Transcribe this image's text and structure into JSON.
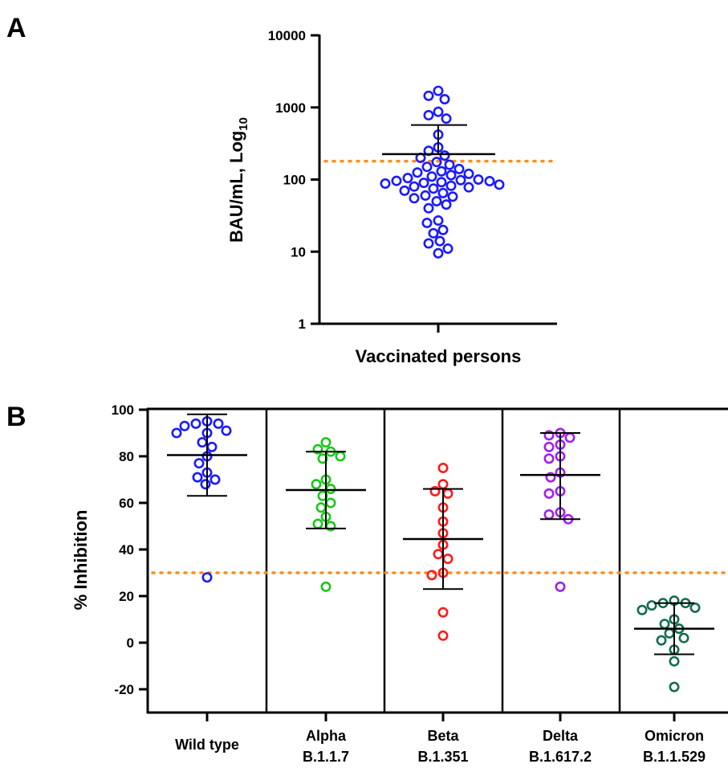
{
  "panels": {
    "a": {
      "letter": "A"
    },
    "b": {
      "letter": "B"
    }
  },
  "colors": {
    "threshold": "#ff8c1a",
    "wild_type": "#1a1aff",
    "alpha": "#19c819",
    "beta": "#ff1a1a",
    "delta": "#a020f0",
    "omicron": "#126e4e",
    "axis": "#000000"
  },
  "chart_data": [
    {
      "panel": "A",
      "type": "scatter",
      "scale": "log10",
      "ylabel_main": "BAU/mL, Log",
      "ylabel_sub": "10",
      "xlabel": "Vaccinated persons",
      "ylim": [
        1,
        10000
      ],
      "yticks": [
        "1",
        "10",
        "100",
        "1000",
        "10000"
      ],
      "threshold": 180,
      "mean": 225,
      "sd_upper": 570,
      "values": [
        1700,
        1450,
        1300,
        870,
        780,
        700,
        420,
        280,
        250,
        215,
        200,
        175,
        160,
        150,
        140,
        130,
        125,
        120,
        115,
        110,
        105,
        100,
        98,
        96,
        95,
        92,
        90,
        88,
        85,
        82,
        80,
        78,
        75,
        70,
        65,
        60,
        58,
        55,
        50,
        45,
        40,
        27,
        25,
        20,
        18,
        14,
        13,
        11,
        9.5
      ]
    },
    {
      "panel": "B",
      "type": "scatter",
      "ylabel": "% Inhibition",
      "ylim": [
        -30,
        100
      ],
      "yticks": [
        "-20",
        "0",
        "20",
        "40",
        "60",
        "80",
        "100"
      ],
      "threshold": 30,
      "categories": [
        {
          "line1": "Wild type",
          "line2": ""
        },
        {
          "line1": "Alpha",
          "line2": "B.1.1.7"
        },
        {
          "line1": "Beta",
          "line2": "B.1.351"
        },
        {
          "line1": "Delta",
          "line2": "B.1.617.2"
        },
        {
          "line1": "Omicron",
          "line2": "B.1.1.529"
        }
      ],
      "series": [
        {
          "mean": 80.5,
          "sd_low": 63,
          "sd_high": 98,
          "values": [
            95,
            94,
            94,
            93,
            91,
            90,
            90,
            86,
            84,
            80,
            77,
            73,
            71,
            70,
            68,
            28
          ]
        },
        {
          "mean": 65.5,
          "sd_low": 49,
          "sd_high": 82,
          "values": [
            86,
            83,
            82,
            80,
            79,
            70,
            68,
            66,
            63,
            60,
            58,
            54,
            51,
            50,
            24
          ]
        },
        {
          "mean": 44.5,
          "sd_low": 23,
          "sd_high": 66,
          "values": [
            75,
            68,
            65,
            64,
            58,
            52,
            47,
            42,
            38,
            36,
            30,
            29,
            13,
            3
          ]
        },
        {
          "mean": 72,
          "sd_low": 53,
          "sd_high": 90,
          "values": [
            90,
            89,
            88,
            85,
            84,
            80,
            79,
            73,
            71,
            65,
            64,
            56,
            55,
            53,
            24
          ]
        },
        {
          "mean": 6,
          "sd_low": -5,
          "sd_high": 17,
          "values": [
            18,
            17,
            17,
            16,
            15,
            14,
            10,
            8,
            6,
            4,
            2,
            1,
            -3,
            -8,
            -19
          ]
        }
      ]
    }
  ]
}
